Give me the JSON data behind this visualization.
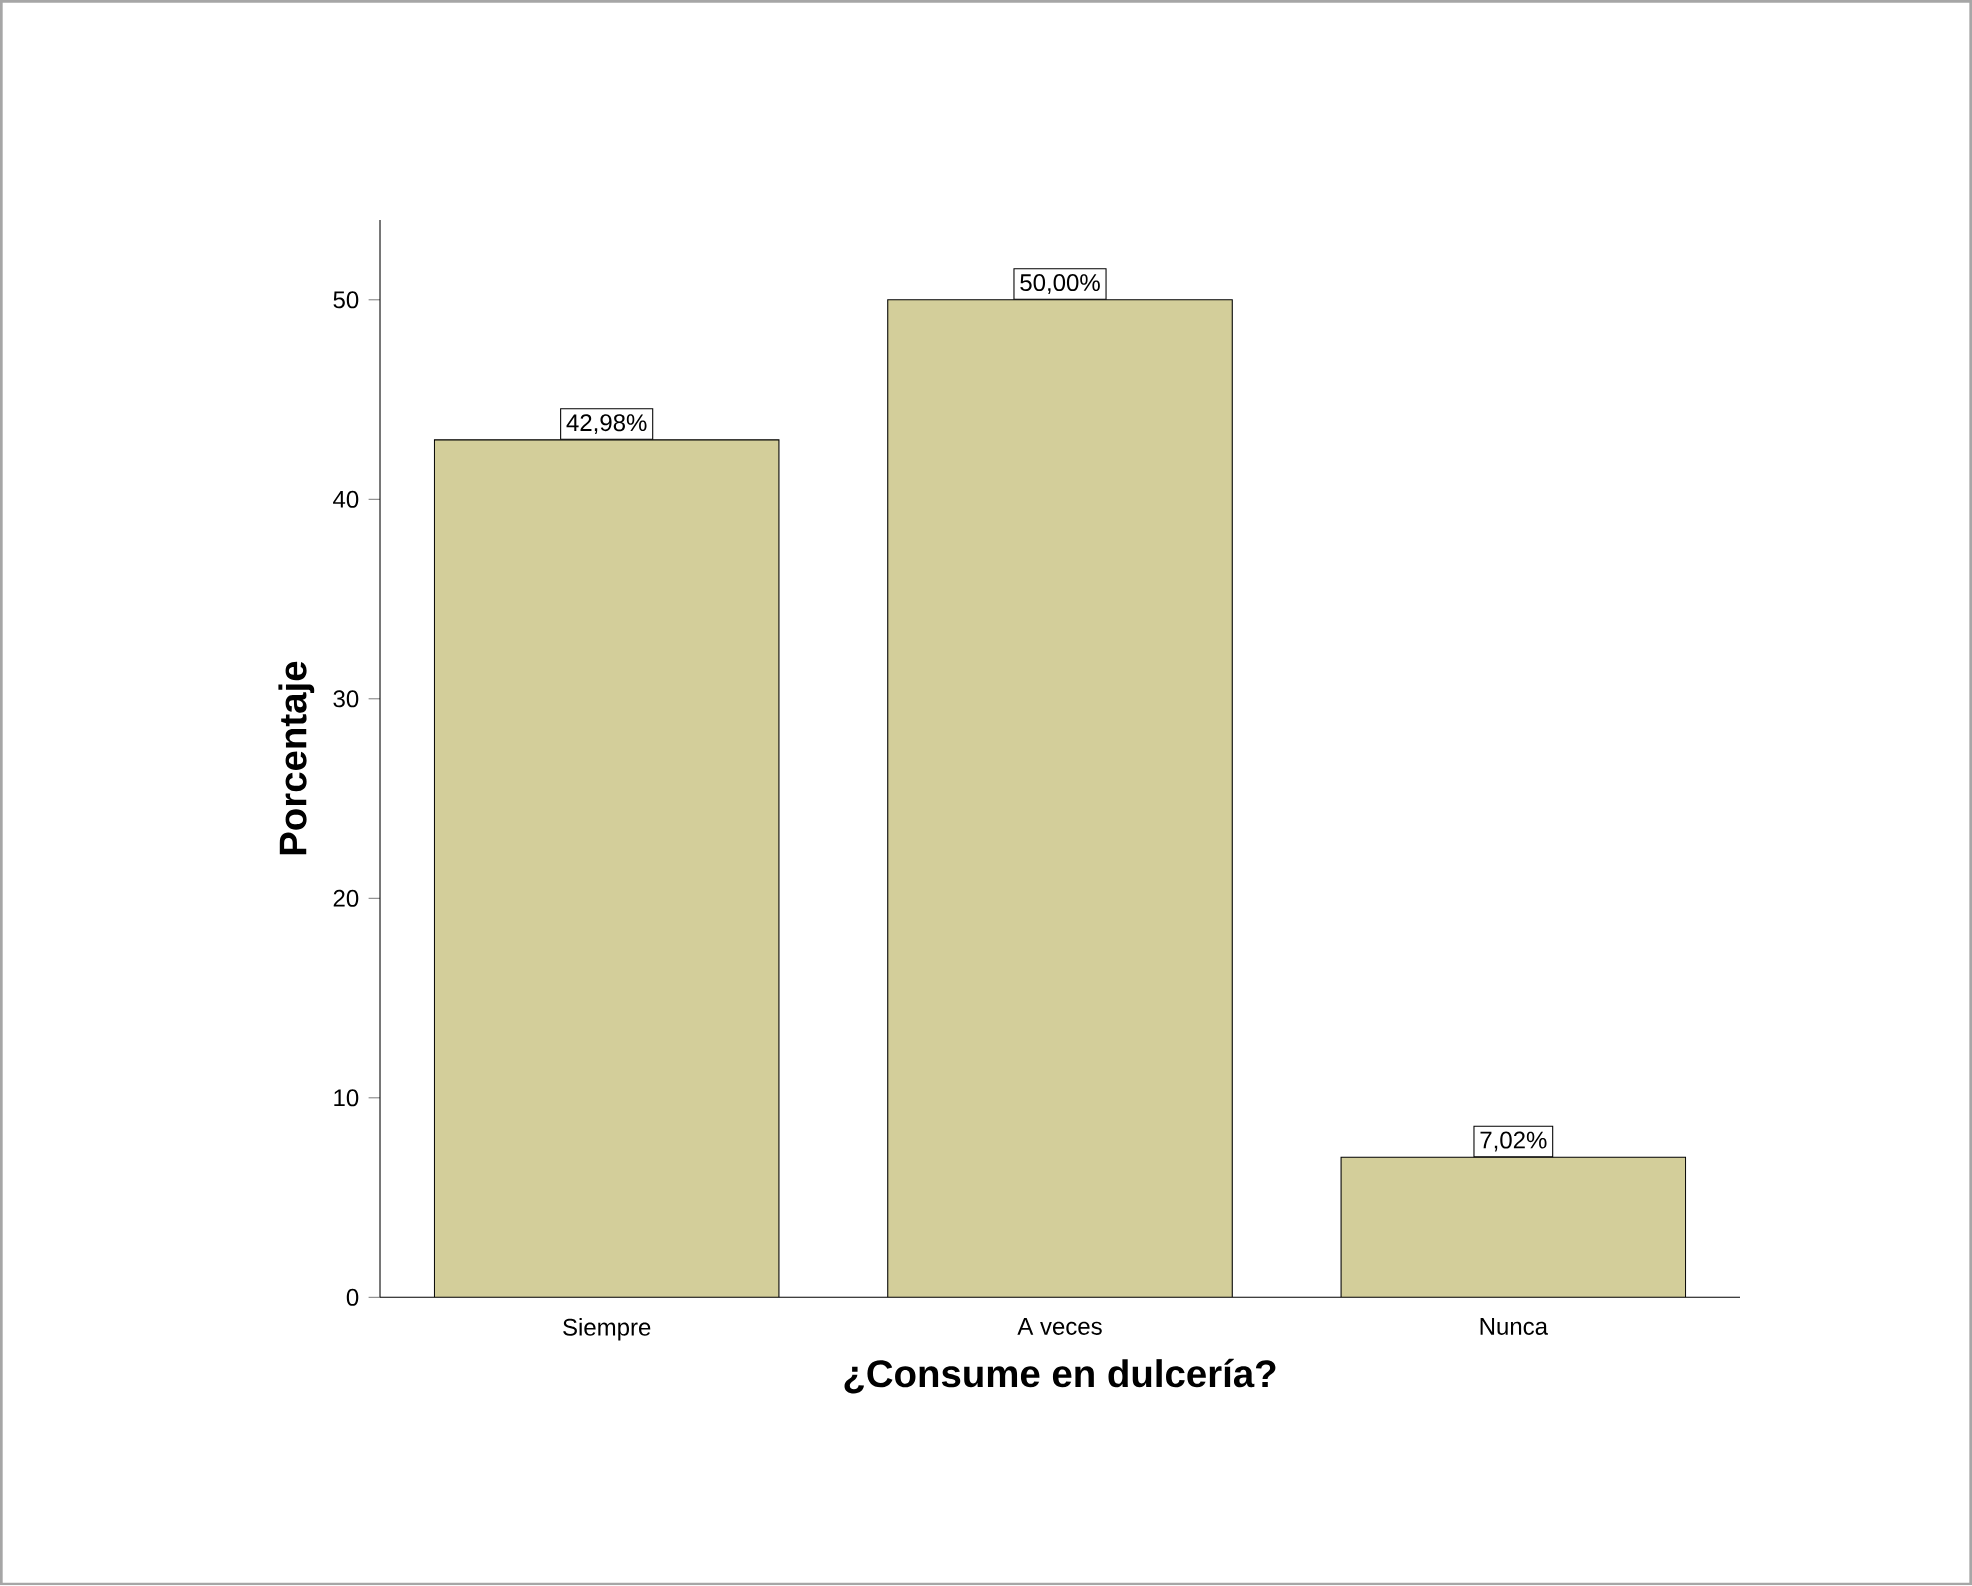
{
  "chart_data": {
    "type": "bar",
    "xlabel": "¿Consume en dulcería?",
    "ylabel": "Porcentaje",
    "categories": [
      "Siempre",
      "A veces",
      "Nunca"
    ],
    "values": [
      42.98,
      50.0,
      7.02
    ],
    "value_labels": [
      "42,98%",
      "50,00%",
      "7,02%"
    ],
    "color": "#d3ce9a",
    "ylim": [
      0,
      54
    ],
    "yticks": [
      0,
      10,
      20,
      30,
      40,
      50
    ]
  }
}
